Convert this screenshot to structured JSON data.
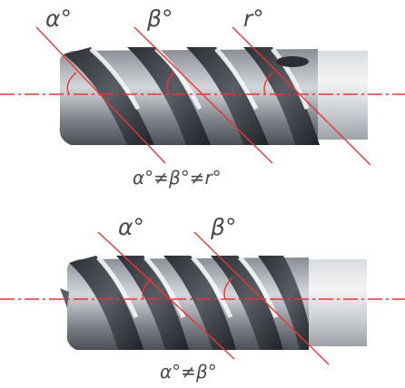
{
  "labels": {
    "top_alpha": "α°",
    "top_beta": "β°",
    "top_gamma": "r°",
    "top_relation": "α°≠β°≠r°",
    "bottom_alpha": "α°",
    "bottom_beta": "β°",
    "bottom_relation": "α°≠β°"
  },
  "colors": {
    "guide_line": "#e8353c",
    "text": "#4a4a4a",
    "metal_dark": "#3a3d42",
    "metal_light": "#e6e8ea"
  }
}
